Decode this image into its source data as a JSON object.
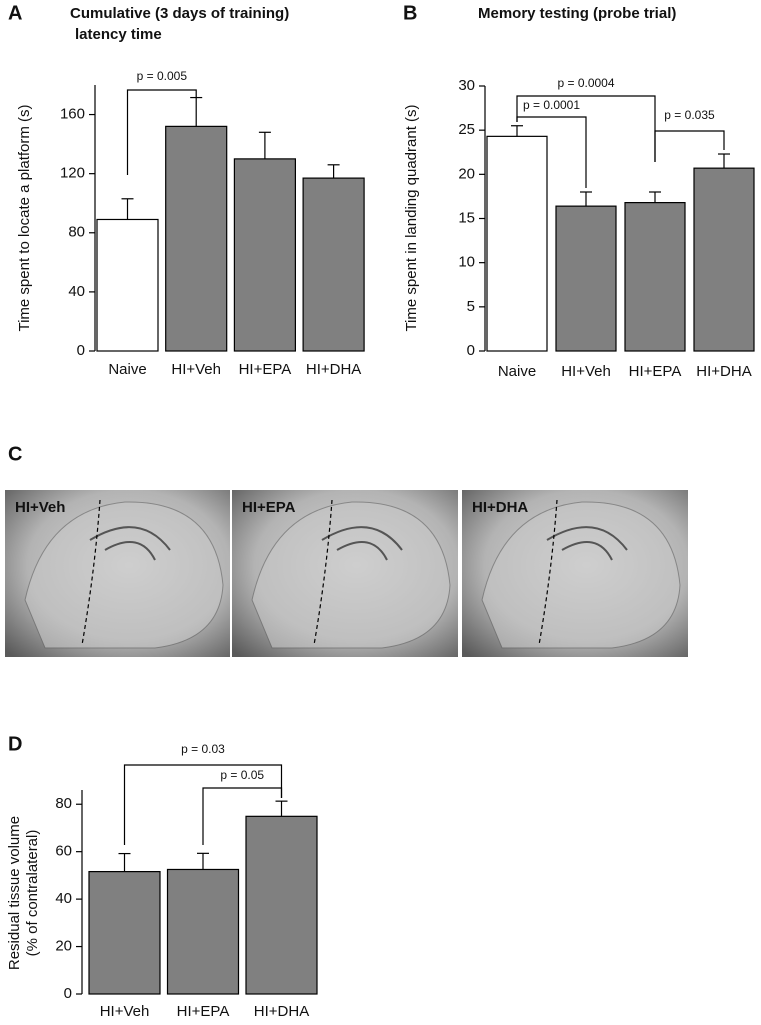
{
  "chart_data": [
    {
      "type": "bar",
      "panel": "A",
      "title_lines": [
        "Cumulative (3 days of training)",
        "latency time"
      ],
      "y_label_lines": [
        "Time spent to locate a platform (s)"
      ],
      "categories": [
        "Naive",
        "HI+Veh",
        "HI+EPA",
        "HI+DHA"
      ],
      "values": [
        89,
        152,
        130,
        117
      ],
      "errors": [
        14,
        19.5,
        18,
        9
      ],
      "colors": [
        "#ffffff",
        "#808080",
        "#808080",
        "#808080"
      ],
      "ylim": [
        0,
        180
      ],
      "yticks": [
        0,
        40,
        80,
        120,
        160
      ],
      "grid": false,
      "annotations": [
        "p = 0.005"
      ]
    },
    {
      "type": "bar",
      "panel": "B",
      "title_lines": [
        "Memory testing (probe trial)"
      ],
      "y_label_lines": [
        "Time spent in landing quadrant (s)"
      ],
      "categories": [
        "Naive",
        "HI+Veh",
        "HI+EPA",
        "HI+DHA"
      ],
      "values": [
        24.3,
        16.4,
        16.8,
        20.7
      ],
      "errors": [
        1.2,
        1.6,
        1.2,
        1.6
      ],
      "colors": [
        "#ffffff",
        "#808080",
        "#808080",
        "#808080"
      ],
      "ylim": [
        0,
        30
      ],
      "yticks": [
        0,
        5,
        10,
        15,
        20,
        25,
        30
      ],
      "grid": false,
      "annotations": [
        "p = 0.0004",
        "p = 0.0001",
        "p = 0.035"
      ]
    },
    {
      "type": "bar",
      "panel": "D",
      "title_lines": [],
      "y_label_lines": [
        "Residual tissue volume",
        "(% of contralateral)"
      ],
      "categories": [
        "HI+Veh",
        "HI+EPA",
        "HI+DHA"
      ],
      "values": [
        51.6,
        52.5,
        74.9
      ],
      "errors": [
        7.6,
        6.8,
        6.4
      ],
      "colors": [
        "#808080",
        "#808080",
        "#808080"
      ],
      "ylim": [
        0,
        86
      ],
      "yticks": [
        0,
        20,
        40,
        60,
        80
      ],
      "grid": false,
      "annotations": [
        "p = 0.03",
        "p = 0.05"
      ]
    }
  ],
  "panel_c": {
    "panel": "C",
    "image_labels": [
      "HI+Veh",
      "HI+EPA",
      "HI+DHA"
    ]
  }
}
